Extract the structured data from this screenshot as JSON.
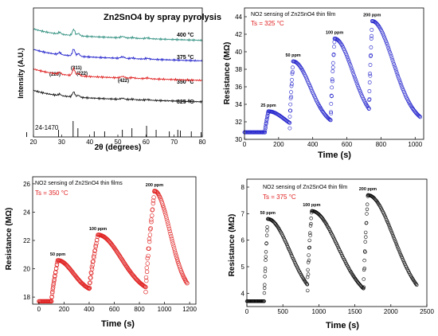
{
  "chart_data": [
    {
      "type": "line",
      "title": "Zn2SnO4 by spray pyrolysis",
      "xlabel": "2θ (degrees)",
      "ylabel": "Intensity (A.U.)",
      "xlim": [
        20,
        80
      ],
      "xticks": [
        20,
        30,
        40,
        50,
        60,
        70,
        80
      ],
      "legend": "none",
      "series": [
        {
          "name": "400 °C",
          "color": "#2f8f7f",
          "baseline": 0.86,
          "amp": 0.55
        },
        {
          "name": "375 °C",
          "color": "#2222cc",
          "baseline": 0.64,
          "amp": 0.62
        },
        {
          "name": "350 °C",
          "color": "#e02020",
          "baseline": 0.43,
          "amp": 0.6
        },
        {
          "name": "325 °C",
          "color": "#111111",
          "baseline": 0.2,
          "amp": 0.45
        }
      ],
      "peaks": [
        {
          "x": 29.3,
          "h": 0.3
        },
        {
          "x": 34.3,
          "h": 1.0
        },
        {
          "x": 36.0,
          "h": 0.4
        },
        {
          "x": 51.7,
          "h": 0.22
        },
        {
          "x": 55.2,
          "h": 0.1
        },
        {
          "x": 60.5,
          "h": 0.12
        }
      ],
      "annotations": [
        "(220)",
        "(311)",
        "(222)",
        "(422)"
      ],
      "reference": {
        "label": "24-1470",
        "x": [
          17.6,
          28.9,
          34.1,
          35.8,
          41.6,
          45.3,
          51.6,
          55.0,
          60.2,
          63.6,
          68.3,
          71.3,
          72.2,
          76.1,
          79.6
        ],
        "h": [
          0.3,
          0.45,
          1.0,
          0.55,
          0.35,
          0.35,
          0.45,
          0.55,
          0.7,
          0.45,
          0.35,
          0.45,
          0.4,
          0.35,
          0.3
        ]
      }
    },
    {
      "type": "scatter",
      "title": "NO2 sensing of Zn2SnO4 thin film",
      "temp_label": "Ts = 325 °C",
      "xlabel": "Time (s)",
      "ylabel": "Resistance (MΩ)",
      "xlim": [
        0,
        1050
      ],
      "ylim": [
        30,
        45
      ],
      "xticks": [
        0,
        200,
        400,
        600,
        800,
        1000
      ],
      "yticks": [
        30,
        32,
        34,
        36,
        38,
        40,
        42,
        44
      ],
      "color": "#2222cc",
      "marker": "circle",
      "baseline": 30.8,
      "end": 1030,
      "pulses": [
        {
          "label": "25 ppm",
          "on": 120,
          "peak_t": 140,
          "peak": 33.2,
          "fall": 170,
          "rest": 30.9
        },
        {
          "label": "50 ppm",
          "on": 265,
          "peak_t": 285,
          "peak": 38.9,
          "fall": 180,
          "rest": 31.5
        },
        {
          "label": "100 ppm",
          "on": 505,
          "peak_t": 528,
          "peak": 41.5,
          "fall": 190,
          "rest": 31.9
        },
        {
          "label": "200 ppm",
          "on": 730,
          "peak_t": 748,
          "peak": 43.5,
          "fall": 220,
          "rest": 31.7
        }
      ]
    },
    {
      "type": "scatter",
      "title": "NO2 sensing of Zn2SnO4 thin films",
      "temp_label": "Ts = 350 °C",
      "xlabel": "Time (s)",
      "ylabel": "Resistance (MΩ)",
      "xlim": [
        -50,
        1250
      ],
      "ylim": [
        17.5,
        26.5
      ],
      "xticks": [
        0,
        200,
        400,
        600,
        800,
        1000,
        1200
      ],
      "yticks": [
        18,
        20,
        22,
        24,
        26
      ],
      "color": "#e02020",
      "marker": "circle",
      "baseline": 17.7,
      "end": 1180,
      "pulses": [
        {
          "label": "50 ppm",
          "on": 100,
          "peak_t": 150,
          "peak": 20.6,
          "fall": 220,
          "rest": 18.3
        },
        {
          "label": "100 ppm",
          "on": 400,
          "peak_t": 470,
          "peak": 22.4,
          "fall": 330,
          "rest": 18.2
        },
        {
          "label": "200 ppm",
          "on": 850,
          "peak_t": 920,
          "peak": 25.5,
          "fall": 220,
          "rest": 18.2
        }
      ]
    },
    {
      "type": "scatter",
      "title": "NO2 sensing of Zn2SnO4 thin film",
      "temp_label": "Ts = 375 °C",
      "xlabel": "Time (s)",
      "ylabel": "Resistance (MΩ)",
      "xlim": [
        0,
        2500
      ],
      "ylim": [
        3.5,
        8.3
      ],
      "xticks": [
        0,
        500,
        1000,
        1500,
        2000,
        2500
      ],
      "yticks": [
        4,
        5,
        6,
        7,
        8
      ],
      "color": "#000000",
      "marker": "circle",
      "baseline": 3.7,
      "end": 2360,
      "pulses": [
        {
          "label": "50 ppm",
          "on": 240,
          "peak_t": 290,
          "peak": 6.8,
          "fall": 550,
          "rest": 3.7
        },
        {
          "label": "100 ppm",
          "on": 840,
          "peak_t": 900,
          "peak": 7.1,
          "fall": 650,
          "rest": 3.7
        },
        {
          "label": "200 ppm",
          "on": 1620,
          "peak_t": 1680,
          "peak": 7.7,
          "fall": 650,
          "rest": 3.6
        }
      ]
    }
  ]
}
